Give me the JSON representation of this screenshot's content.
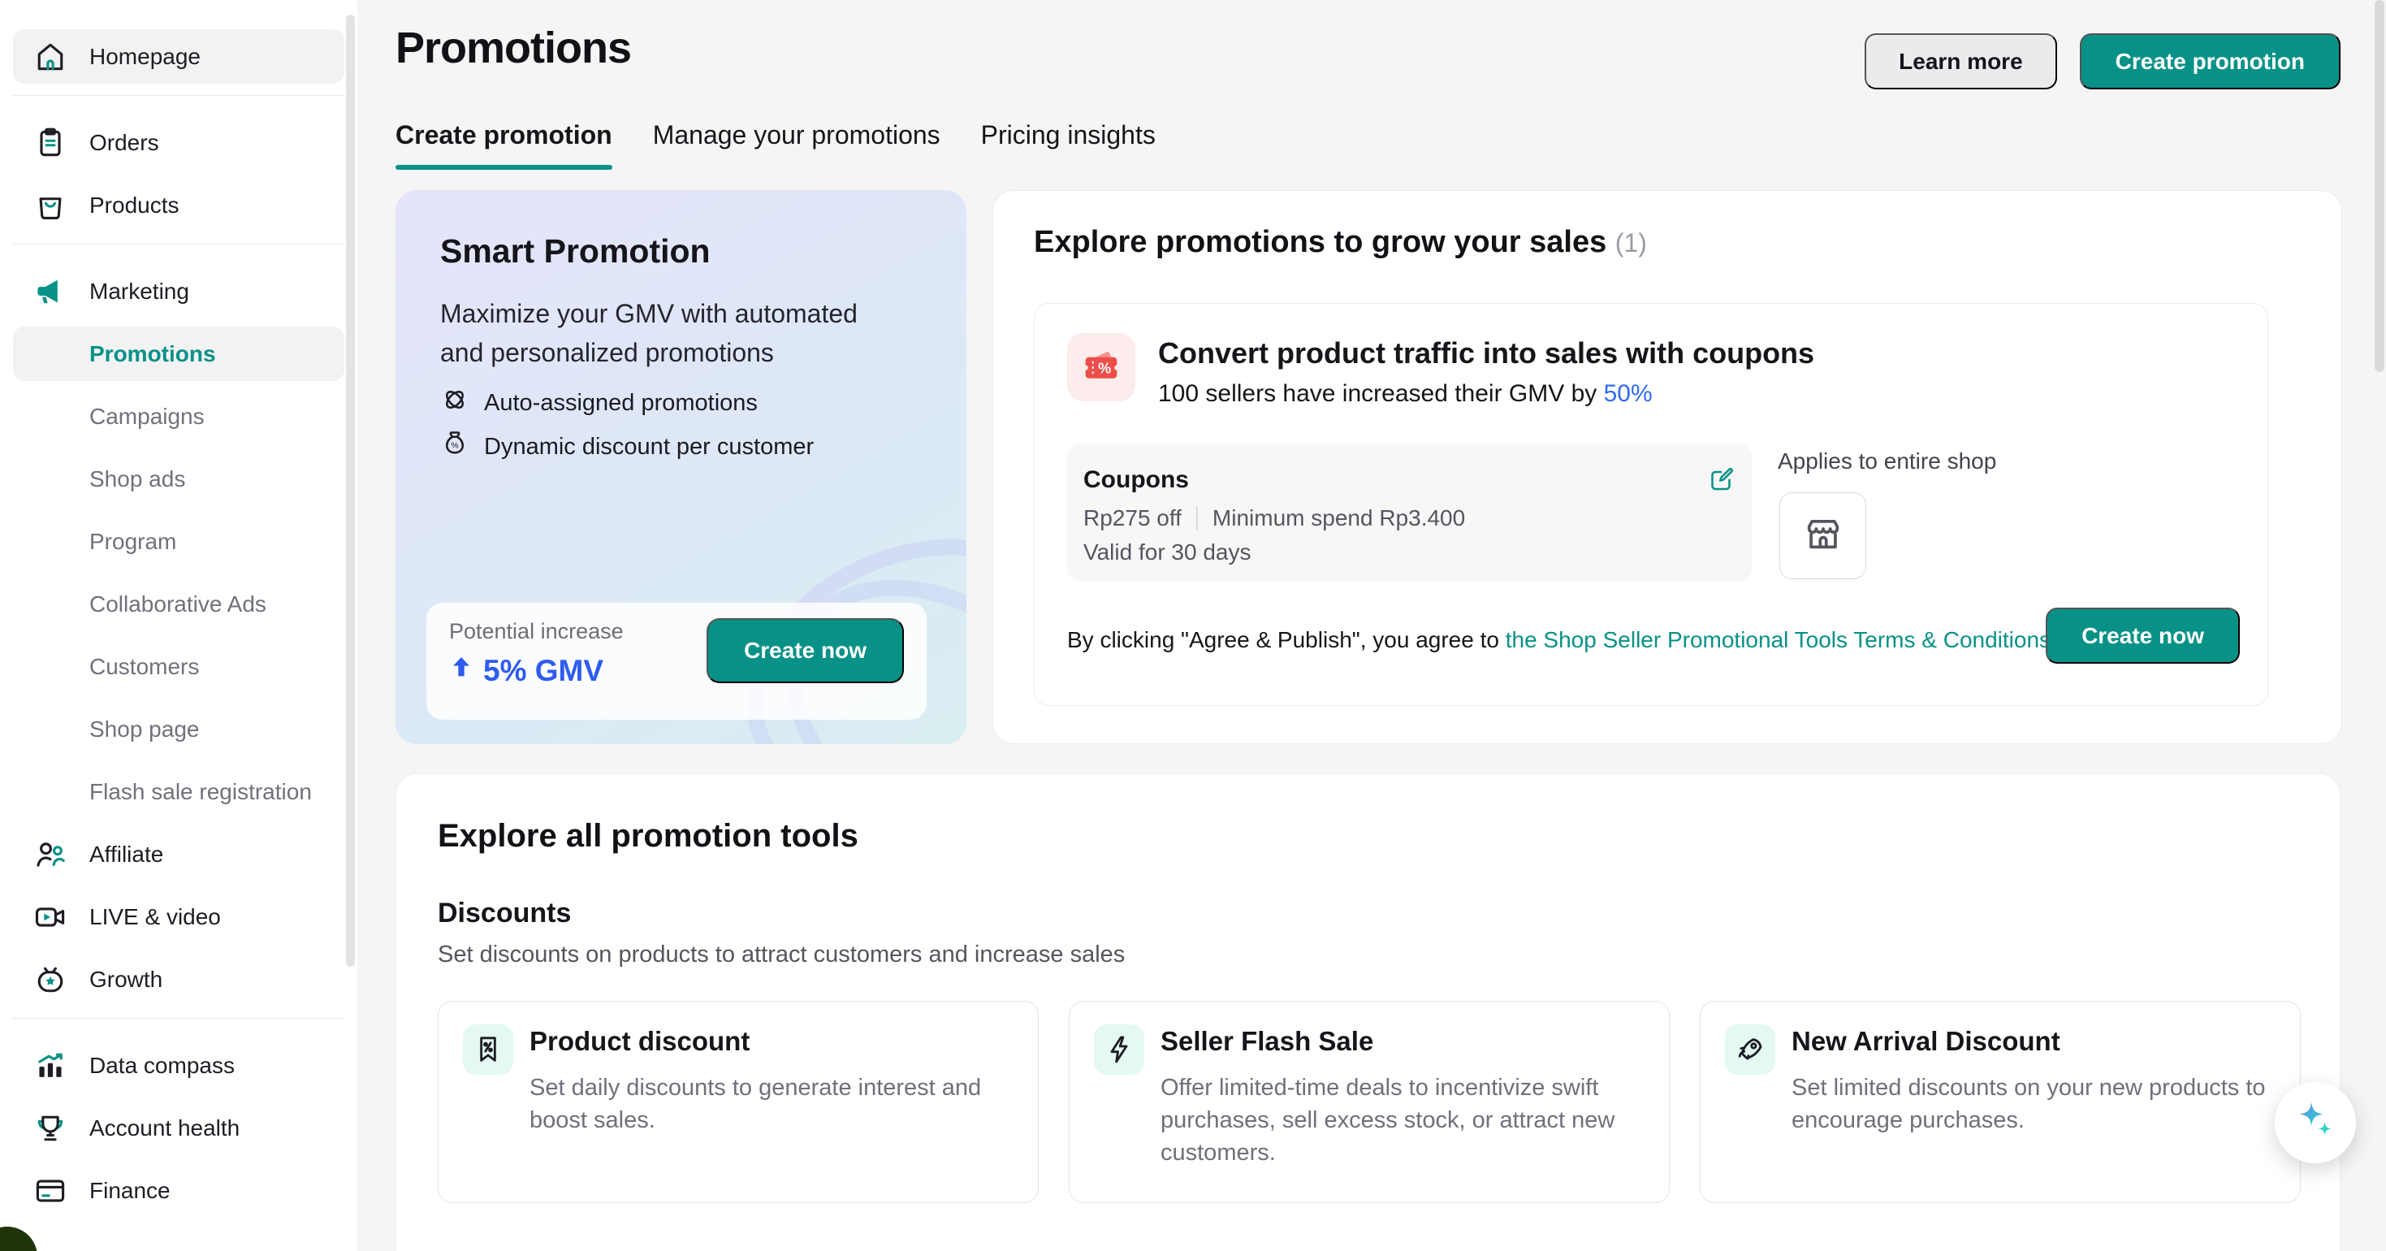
{
  "colors": {
    "accent": "#089187",
    "blue": "#2E5BF0",
    "coupon_red": "#EE4D4A"
  },
  "header": {
    "title": "Promotions",
    "learn_more": "Learn more",
    "create_promotion": "Create promotion"
  },
  "tabs": [
    {
      "label": "Create promotion",
      "active": true
    },
    {
      "label": "Manage your promotions",
      "active": false
    },
    {
      "label": "Pricing insights",
      "active": false
    }
  ],
  "sidebar": {
    "items": [
      {
        "type": "link",
        "label": "Homepage",
        "icon": "home",
        "row_bg": true
      },
      {
        "type": "divider"
      },
      {
        "type": "link",
        "label": "Orders",
        "icon": "orders"
      },
      {
        "type": "link",
        "label": "Products",
        "icon": "products"
      },
      {
        "type": "divider"
      },
      {
        "type": "link",
        "label": "Marketing",
        "icon": "megaphone"
      },
      {
        "type": "sub",
        "label": "Promotions",
        "selected": true
      },
      {
        "type": "sub",
        "label": "Campaigns"
      },
      {
        "type": "sub",
        "label": "Shop ads"
      },
      {
        "type": "sub",
        "label": "Program"
      },
      {
        "type": "sub",
        "label": "Collaborative Ads"
      },
      {
        "type": "sub",
        "label": "Customers"
      },
      {
        "type": "sub",
        "label": "Shop page"
      },
      {
        "type": "sub",
        "label": "Flash sale registration"
      },
      {
        "type": "link",
        "label": "Affiliate",
        "icon": "affiliate"
      },
      {
        "type": "link",
        "label": "LIVE & video",
        "icon": "live"
      },
      {
        "type": "link",
        "label": "Growth",
        "icon": "growth"
      },
      {
        "type": "divider"
      },
      {
        "type": "link",
        "label": "Data compass",
        "icon": "datacompass"
      },
      {
        "type": "link",
        "label": "Account health",
        "icon": "health"
      },
      {
        "type": "link",
        "label": "Finance",
        "icon": "finance"
      }
    ]
  },
  "smart": {
    "title": "Smart Promotion",
    "description": "Maximize your GMV with automated and personalized promotions",
    "features": [
      {
        "icon": "knot",
        "label": "Auto-assigned promotions"
      },
      {
        "icon": "moneybag",
        "label": "Dynamic discount per customer"
      }
    ],
    "potential_label": "Potential increase",
    "potential_value": "5% GMV",
    "cta": "Create now"
  },
  "explore": {
    "heading": "Explore promotions to grow your sales",
    "count": "(1)",
    "banner_title": "Convert product traffic into sales with coupons",
    "banner_prefix": "100 sellers have increased their GMV by ",
    "banner_highlight": "50%",
    "coupon": {
      "title": "Coupons",
      "discount": "Rp275 off",
      "min_spend": "Minimum spend Rp3.400",
      "validity": "Valid for 30 days"
    },
    "applies_label": "Applies to entire shop",
    "agreement_prefix": "By clicking \"Agree & Publish\", you agree to",
    "agreement_link": "the Shop Seller Promotional Tools Terms & Conditions",
    "cta": "Create now"
  },
  "tools": {
    "heading": "Explore all promotion tools",
    "group_title": "Discounts",
    "group_desc": "Set discounts on products to attract customers and increase sales",
    "cards": [
      {
        "icon": "tag",
        "title": "Product discount",
        "desc": "Set daily discounts to generate interest and boost sales."
      },
      {
        "icon": "flash",
        "title": "Seller Flash Sale",
        "desc": "Offer limited-time deals to incentivize swift purchases, sell excess stock, or attract new customers."
      },
      {
        "icon": "rocket",
        "title": "New Arrival Discount",
        "desc": "Set limited discounts on your new products to encourage purchases."
      }
    ]
  }
}
